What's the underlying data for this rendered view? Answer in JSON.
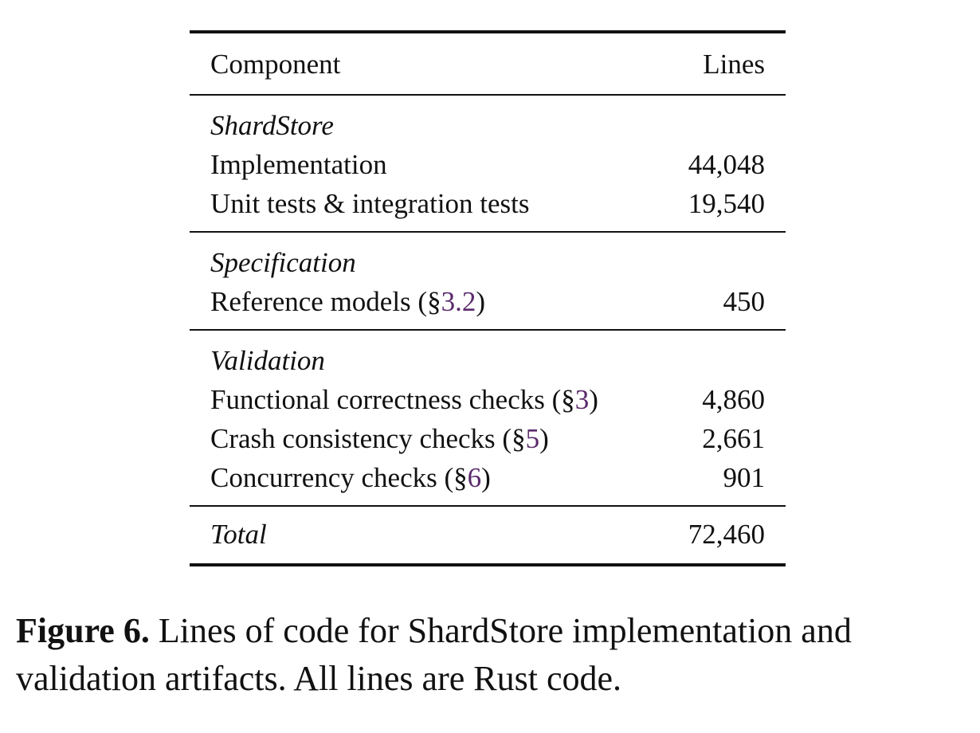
{
  "table": {
    "header": {
      "component": "Component",
      "lines": "Lines"
    },
    "groups": [
      {
        "title": "ShardStore",
        "rows": [
          {
            "label": "Implementation",
            "ref": "",
            "suffix": "",
            "lines": "44,048"
          },
          {
            "label": "Unit tests & integration tests",
            "ref": "",
            "suffix": "",
            "lines": "19,540"
          }
        ]
      },
      {
        "title": "Specification",
        "rows": [
          {
            "label": "Reference models (§",
            "ref": "3.2",
            "suffix": ")",
            "lines": "450"
          }
        ]
      },
      {
        "title": "Validation",
        "rows": [
          {
            "label": "Functional correctness checks (§",
            "ref": "3",
            "suffix": ")",
            "lines": "4,860"
          },
          {
            "label": "Crash consistency checks (§",
            "ref": "5",
            "suffix": ")",
            "lines": "2,661"
          },
          {
            "label": "Concurrency checks (§",
            "ref": "6",
            "suffix": ")",
            "lines": "901"
          }
        ]
      }
    ],
    "total": {
      "label": "Total",
      "lines": "72,460"
    },
    "ref_color": "#5b2a6b"
  },
  "caption": {
    "label": "Figure 6.",
    "text": " Lines of code for ShardStore implementation and validation artifacts. All lines are Rust code."
  }
}
